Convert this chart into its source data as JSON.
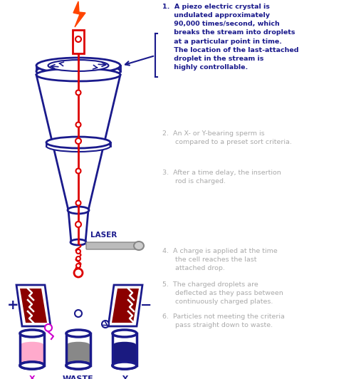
{
  "bg_color": "#ffffff",
  "db": "#1a1a8c",
  "red": "#dd0000",
  "dark_red": "#8b0000",
  "gray_text": "#aaaaaa",
  "magenta": "#cc00cc",
  "pink_fill": "#ffaacc",
  "gray_fill": "#888888",
  "navy_fill": "#1a1a80",
  "laser_gray": "#bbbbbb",
  "orange_bolt": "#ff4400",
  "label1": "1.  A piezo electric crystal is\n     undulated approximately\n     90,000 times/second, which\n     breaks the stream into droplets\n     at a particular point in time.\n     The location of the last-attached\n     droplet in the stream is\n     highly controllable.",
  "label2": "2.  An X- or Y-bearing sperm is\n      compared to a preset sort criteria.",
  "label3": "3.  After a time delay, the insertion\n      rod is charged.",
  "label4": "4.  A charge is applied at the time\n      the cell reaches the last\n      attached drop.",
  "label5": "5.  The charged droplets are\n      deflected as they pass between\n      continuously charged plates.",
  "label6": "6.  Particles not meeting the criteria\n      pass straight down to waste."
}
